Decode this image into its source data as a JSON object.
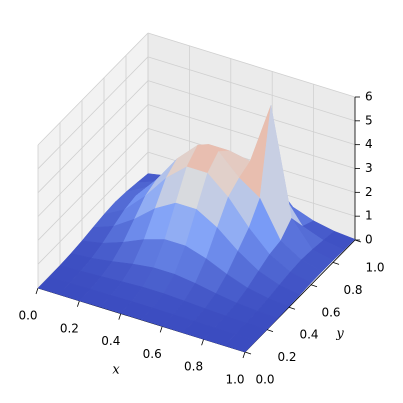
{
  "chart_data": {
    "type": "surface",
    "colormap": "coolwarm",
    "x": [
      0,
      0.1,
      0.2,
      0.3,
      0.4,
      0.5,
      0.6,
      0.7,
      0.8,
      0.9,
      1
    ],
    "y": [
      0,
      0.1,
      0.2,
      0.3,
      0.4,
      0.5,
      0.6,
      0.7,
      0.8,
      0.9,
      1
    ],
    "z": [
      [
        0,
        0,
        0,
        0.01,
        0.01,
        0.01,
        0.01,
        0,
        0,
        0,
        0
      ],
      [
        0,
        0.01,
        0.02,
        0.03,
        0.04,
        0.04,
        0.03,
        0.02,
        0.01,
        0,
        0
      ],
      [
        0.01,
        0.04,
        0.08,
        0.13,
        0.17,
        0.17,
        0.13,
        0.08,
        0.04,
        0.01,
        0
      ],
      [
        0.04,
        0.11,
        0.24,
        0.4,
        0.51,
        0.51,
        0.4,
        0.24,
        0.11,
        0.04,
        0.01
      ],
      [
        0.1,
        0.27,
        0.58,
        0.96,
        1.23,
        1.23,
        0.96,
        0.58,
        0.27,
        0.1,
        0.03
      ],
      [
        0.19,
        0.51,
        1.08,
        1.79,
        2.29,
        2.29,
        1.79,
        1.08,
        0.51,
        0.19,
        0.05
      ],
      [
        0.27,
        0.74,
        1.58,
        2.6,
        3.34,
        3.34,
        2.6,
        1.58,
        0.74,
        0.27,
        0.08
      ],
      [
        0.31,
        0.84,
        1.79,
        2.94,
        3.78,
        3.78,
        2.94,
        2.36,
        0.84,
        0.31,
        0.09
      ],
      [
        0.27,
        0.74,
        1.58,
        2.6,
        3.34,
        3.34,
        3.17,
        5.78,
        1.31,
        0.27,
        0.08
      ],
      [
        0.19,
        0.51,
        1.08,
        1.79,
        2.29,
        2.29,
        1.79,
        1.65,
        0.51,
        0.19,
        0.05
      ],
      [
        0.1,
        0.27,
        0.58,
        0.96,
        1.23,
        1.23,
        0.96,
        0.58,
        0.27,
        0.1,
        0.03
      ]
    ],
    "xlim": [
      0,
      1
    ],
    "ylim": [
      0,
      1
    ],
    "zlim": [
      0,
      6
    ],
    "xticks": [
      {
        "value": 0,
        "label": "0.0"
      },
      {
        "value": 0.2,
        "label": "0.2"
      },
      {
        "value": 0.4,
        "label": "0.4"
      },
      {
        "value": 0.6,
        "label": "0.6"
      },
      {
        "value": 0.8,
        "label": "0.8"
      },
      {
        "value": 1,
        "label": "1.0"
      }
    ],
    "yticks": [
      {
        "value": 0,
        "label": "0.0"
      },
      {
        "value": 0.2,
        "label": "0.2"
      },
      {
        "value": 0.4,
        "label": "0.4"
      },
      {
        "value": 0.6,
        "label": "0.6"
      },
      {
        "value": 0.8,
        "label": "0.8"
      },
      {
        "value": 1,
        "label": "1.0"
      }
    ],
    "zticks": [
      0,
      1,
      2,
      3,
      4,
      5,
      6
    ],
    "xlabel": "x",
    "ylabel": "y",
    "grid": true
  }
}
